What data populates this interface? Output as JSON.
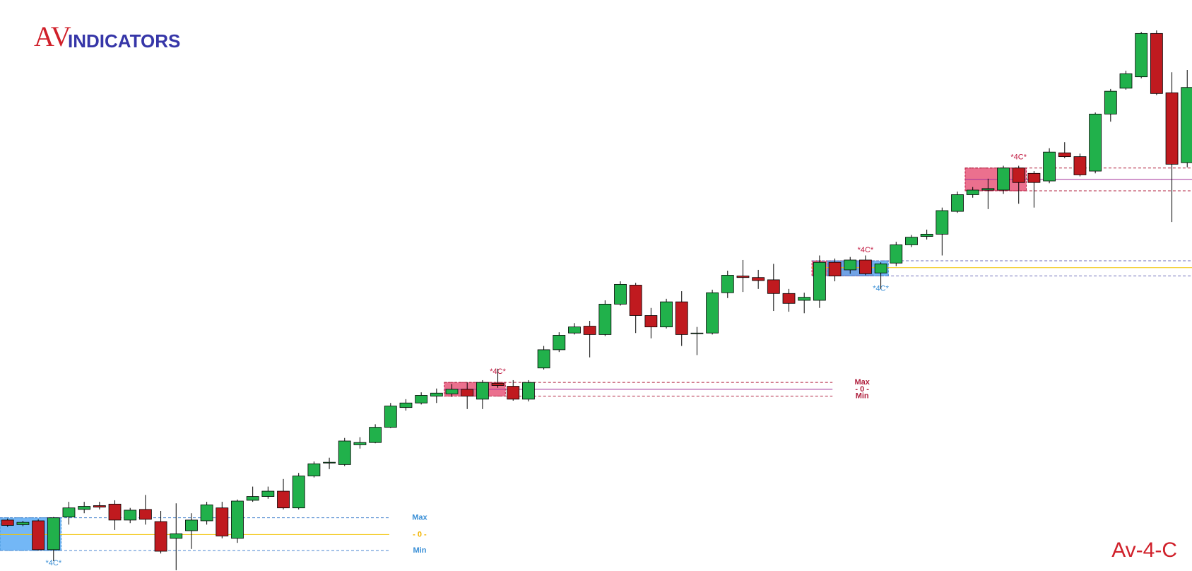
{
  "chart_data": {
    "type": "candlestick",
    "title": "Av-4-C",
    "logo": {
      "brand": "AV",
      "name": "INDICATORS"
    },
    "ylim": [
      0,
      751
    ],
    "up_color": "#21b14b",
    "down_color": "#c01a1f",
    "open": [
      67,
      61,
      66,
      28,
      71,
      81,
      86,
      88,
      67,
      81,
      65,
      43,
      53,
      66,
      83,
      43,
      93,
      98,
      105,
      83,
      125,
      142,
      140,
      166,
      169,
      189,
      215,
      221,
      230,
      233,
      239,
      226,
      247,
      243,
      226,
      267,
      291,
      313,
      322,
      311,
      351,
      376,
      336,
      321,
      354,
      313,
      313,
      366,
      388,
      386,
      383,
      365,
      356,
      356,
      406,
      396,
      409,
      392,
      405,
      429,
      440,
      443,
      473,
      495,
      501,
      501,
      530,
      523,
      513,
      550,
      545,
      526,
      601,
      635,
      650,
      707,
      629,
      537
    ],
    "high": [
      69,
      66,
      68,
      71,
      91,
      91,
      91,
      93,
      83,
      100,
      79,
      89,
      76,
      91,
      91,
      94,
      111,
      111,
      121,
      129,
      144,
      149,
      175,
      176,
      193,
      221,
      226,
      235,
      240,
      246,
      248,
      251,
      266,
      251,
      251,
      296,
      314,
      326,
      329,
      356,
      381,
      379,
      346,
      358,
      368,
      321,
      370,
      395,
      409,
      396,
      404,
      371,
      366,
      415,
      411,
      413,
      415,
      406,
      433,
      442,
      449,
      478,
      499,
      505,
      516,
      533,
      533,
      526,
      556,
      564,
      549,
      603,
      634,
      658,
      709,
      711,
      656,
      659
    ],
    "low": [
      58,
      59,
      27,
      13,
      61,
      76,
      81,
      54,
      63,
      61,
      23,
      1,
      29,
      61,
      43,
      37,
      91,
      95,
      81,
      81,
      123,
      134,
      138,
      161,
      168,
      188,
      211,
      219,
      221,
      229,
      213,
      213,
      241,
      224,
      223,
      265,
      288,
      311,
      281,
      309,
      349,
      313,
      306,
      319,
      296,
      284,
      311,
      359,
      367,
      371,
      342,
      341,
      339,
      346,
      381,
      391,
      389,
      371,
      401,
      426,
      436,
      415,
      471,
      491,
      476,
      496,
      483,
      478,
      510,
      543,
      519,
      523,
      591,
      633,
      648,
      626,
      459,
      531
    ],
    "close": [
      60,
      64,
      28,
      70,
      83,
      85,
      84,
      67,
      80,
      68,
      26,
      49,
      67,
      87,
      46,
      92,
      98,
      105,
      83,
      125,
      141,
      143,
      171,
      169,
      189,
      217,
      221,
      231,
      234,
      239,
      230,
      248,
      244,
      226,
      248,
      291,
      310,
      321,
      311,
      351,
      377,
      336,
      321,
      354,
      311,
      313,
      366,
      389,
      386,
      382,
      365,
      352,
      360,
      406,
      388,
      409,
      391,
      404,
      429,
      439,
      443,
      474,
      495,
      501,
      503,
      530,
      511,
      511,
      551,
      545,
      521,
      601,
      631,
      654,
      707,
      628,
      535,
      636
    ],
    "zones": [
      {
        "max": 70,
        "min": 27,
        "mid": 48,
        "line_color": "#4a86d0",
        "mid_color": "#f2c300",
        "label_color": "#3a8fd6",
        "mid_label_color": "#f2b400",
        "labels": [
          "Max",
          "- 0 -",
          "Min"
        ],
        "boxes": [
          {
            "color": "#5aaaf5",
            "tag": "*4C*",
            "tag_color": "#3a8fd6"
          }
        ]
      },
      {
        "max": 248,
        "min": 230,
        "mid": 239,
        "line_color": "#b0213f",
        "mid_color": "#a2309a",
        "label_color": "#b0213f",
        "mid_label_color": "#b0213f",
        "labels": [
          "Max",
          "- 0 -",
          "Min"
        ],
        "boxes": [
          {
            "color": "#e8577a",
            "tag": "*4C*",
            "tag_color": "#c0163e"
          }
        ]
      },
      {
        "max": 408,
        "min": 388,
        "mid": 399,
        "line_color": "#6a6ab8",
        "mid_color": "#f2c300",
        "boxes": [
          {
            "color": "#e8577a",
            "tag": "*4C*",
            "tag_color": "#c0163e"
          },
          {
            "color": "#5aaaf5",
            "tag": "*4C*",
            "tag_color": "#3a8fd6"
          }
        ]
      },
      {
        "max": 530,
        "min": 500,
        "mid": 515,
        "line_color": "#b0213f",
        "mid_color": "#a2309a",
        "boxes": [
          {
            "color": "#e8577a",
            "tag": "*4C*",
            "tag_color": "#c0163e"
          }
        ]
      }
    ]
  }
}
